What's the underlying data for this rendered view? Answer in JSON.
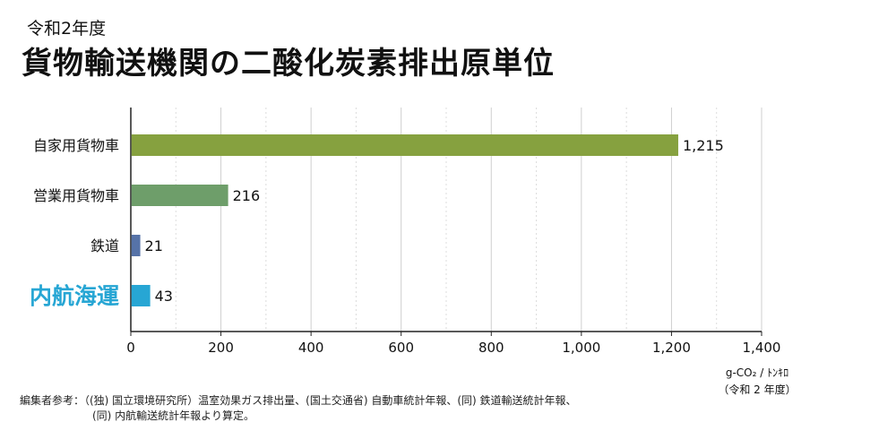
{
  "header": {
    "subtitle": "令和2年度",
    "title": "貨物輸送機関の二酸化炭素排出原単位"
  },
  "chart_data": {
    "type": "bar",
    "orientation": "horizontal",
    "categories": [
      "自家用貨物車",
      "営業用貨物車",
      "鉄道",
      "内航海運"
    ],
    "values": [
      1215,
      216,
      21,
      43
    ],
    "value_labels": [
      "1,215",
      "216",
      "21",
      "43"
    ],
    "bar_colors": [
      "#86a13f",
      "#6e9e6a",
      "#5673a8",
      "#27a6d4"
    ],
    "highlight_category": "内航海運",
    "highlight_color": "#27a6d4",
    "xlim": [
      0,
      1400
    ],
    "xticks": [
      0,
      200,
      400,
      600,
      800,
      1000,
      1200,
      1400
    ],
    "xtick_labels": [
      "0",
      "200",
      "400",
      "600",
      "800",
      "1,000",
      "1,200",
      "1,400"
    ],
    "grid": "vertical dashed",
    "xlabel": "g-CO₂ / ﾄﾝｷﾛ",
    "xlabel_note": "（令和 2 年度）"
  },
  "source": {
    "line1": "編集者参考：（(独) 国立環境研究所）温室効果ガス排出量、(国土交通省) 自動車統計年報、(同) 鉄道輸送統計年報、",
    "line2": "(同) 内航輸送統計年報より算定。"
  }
}
